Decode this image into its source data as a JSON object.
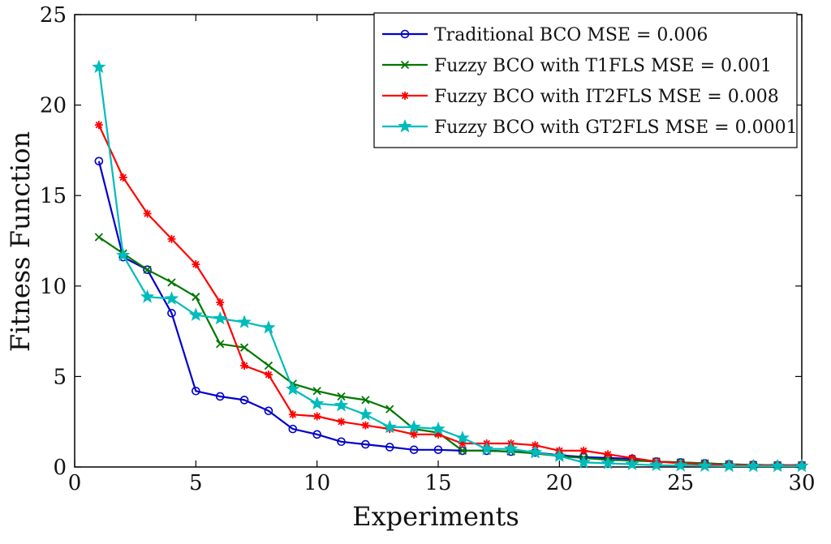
{
  "chart_data": {
    "type": "line",
    "title": "",
    "xlabel": "Experiments",
    "ylabel": "Fitness Function",
    "xlim": [
      0,
      30
    ],
    "ylim": [
      0,
      25
    ],
    "xticks": [
      0,
      5,
      10,
      15,
      20,
      25,
      30
    ],
    "yticks": [
      0,
      5,
      10,
      15,
      20,
      25
    ],
    "grid": false,
    "legend_position": "top-right",
    "x": [
      1,
      2,
      3,
      4,
      5,
      6,
      7,
      8,
      9,
      10,
      11,
      12,
      13,
      14,
      15,
      16,
      17,
      18,
      19,
      20,
      21,
      22,
      23,
      24,
      25,
      26,
      27,
      28,
      29,
      30
    ],
    "series": [
      {
        "name": "Traditional BCO MSE = 0.006",
        "color": "#0000cc",
        "marker": "circle",
        "values": [
          16.9,
          11.6,
          10.9,
          8.5,
          4.2,
          3.9,
          3.7,
          3.1,
          2.1,
          1.8,
          1.4,
          1.25,
          1.1,
          0.95,
          0.95,
          0.9,
          0.9,
          0.85,
          0.8,
          0.65,
          0.55,
          0.5,
          0.45,
          0.3,
          0.25,
          0.2,
          0.15,
          0.12,
          0.1,
          0.1
        ]
      },
      {
        "name": "Fuzzy BCO with T1FLS MSE = 0.001",
        "color": "#007700",
        "marker": "x",
        "values": [
          12.7,
          11.8,
          10.9,
          10.2,
          9.4,
          6.8,
          6.6,
          5.6,
          4.6,
          4.2,
          3.9,
          3.7,
          3.2,
          2.1,
          1.9,
          0.9,
          0.9,
          0.85,
          0.75,
          0.6,
          0.5,
          0.4,
          0.35,
          0.3,
          0.25,
          0.2,
          0.15,
          0.12,
          0.1,
          0.1
        ]
      },
      {
        "name": "Fuzzy BCO with IT2FLS MSE = 0.008",
        "color": "#ff0000",
        "marker": "star",
        "values": [
          18.9,
          16.0,
          14.0,
          12.6,
          11.2,
          9.1,
          5.6,
          5.1,
          2.9,
          2.8,
          2.5,
          2.3,
          2.1,
          1.8,
          1.8,
          1.3,
          1.3,
          1.3,
          1.2,
          0.9,
          0.9,
          0.7,
          0.5,
          0.3,
          0.2,
          0.15,
          0.12,
          0.1,
          0.1,
          0.1
        ]
      },
      {
        "name": "Fuzzy BCO with GT2FLS MSE = 0.0001",
        "color": "#00bbbb",
        "marker": "pentagram",
        "values": [
          22.1,
          11.7,
          9.4,
          9.3,
          8.4,
          8.2,
          8.0,
          7.7,
          4.3,
          3.5,
          3.4,
          2.9,
          2.2,
          2.2,
          2.1,
          1.6,
          1.0,
          1.0,
          0.8,
          0.6,
          0.25,
          0.2,
          0.15,
          0.1,
          0.08,
          0.06,
          0.05,
          0.05,
          0.05,
          0.05
        ]
      }
    ]
  }
}
